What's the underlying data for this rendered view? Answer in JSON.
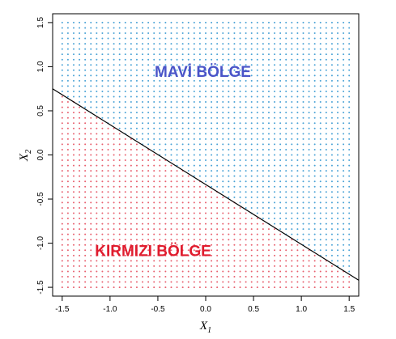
{
  "chart_data": {
    "type": "scatter",
    "xlabel": "X",
    "xlabel_sub": "1",
    "ylabel": "X",
    "ylabel_sub": "2",
    "xlim": [
      -1.6,
      1.6
    ],
    "ylim": [
      -1.6,
      1.6
    ],
    "x_ticks": [
      "-1.5",
      "-1.0",
      "-0.5",
      "0.0",
      "0.5",
      "1.0",
      "1.5"
    ],
    "y_ticks": [
      "-1.5",
      "-1.0",
      "-0.5",
      "0.0",
      "0.5",
      "1.0",
      "1.5"
    ],
    "grid": {
      "x_start": -1.5,
      "x_end": 1.5,
      "y_start": -1.5,
      "y_end": 1.5,
      "step": 0.06
    },
    "boundary_line": {
      "x": [
        -1.6,
        1.6
      ],
      "y": [
        0.75,
        -1.42
      ]
    },
    "regions": [
      {
        "label": "MAVİ BÖLGE",
        "color": "#4a54c8",
        "dot_color": "#4ba3d6",
        "side": "above",
        "label_x": -0.03,
        "label_y": 0.95
      },
      {
        "label": "KIRMIZI BÖLGE",
        "color": "#e01c2e",
        "dot_color": "#e8606f",
        "side": "below",
        "label_x": -0.55,
        "label_y": -1.08
      }
    ]
  }
}
